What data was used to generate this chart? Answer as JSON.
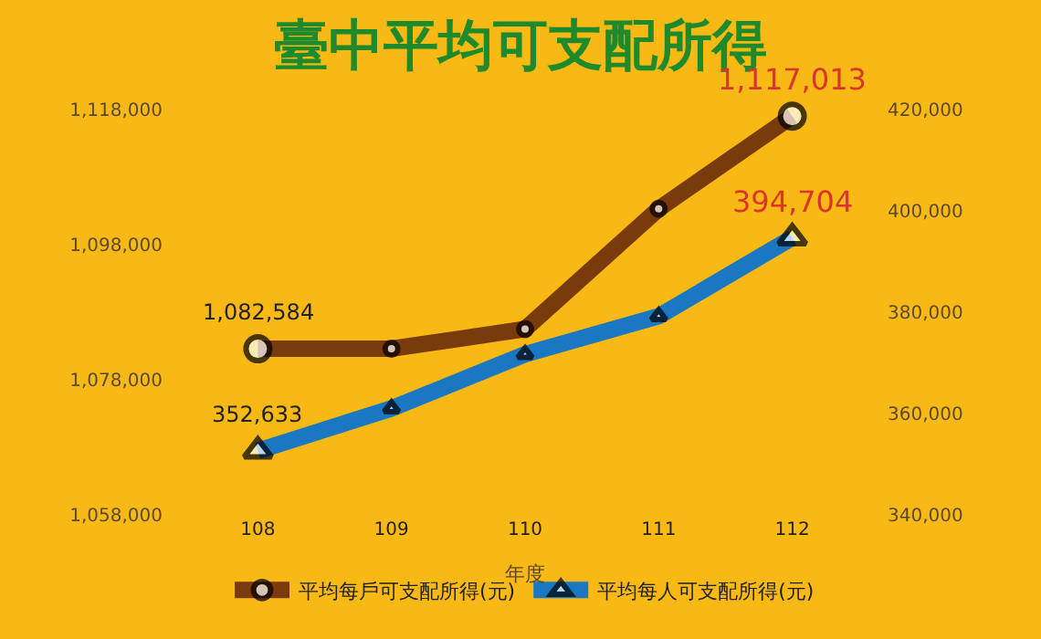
{
  "chart_data": {
    "type": "line",
    "title": "臺中平均可支配所得",
    "xlabel": "年度",
    "categories": [
      "108",
      "109",
      "110",
      "111",
      "112"
    ],
    "series": [
      {
        "name": "平均每戶可支配所得(元)",
        "color": "#7a3b0c",
        "marker": "circle",
        "values": [
          1082584,
          1082600,
          1085500,
          1103300,
          1117013
        ],
        "value_labels": [
          "1,082,584",
          null,
          null,
          null,
          "1,117,013"
        ]
      },
      {
        "name": "平均每人可支配所得(元)",
        "color": "#1a78c2",
        "marker": "triangle",
        "axis": "y2",
        "values": [
          352633,
          361000,
          371700,
          379200,
          394704
        ],
        "value_labels": [
          "352,633",
          null,
          null,
          null,
          "394,704"
        ]
      }
    ],
    "ylim": [
      1058000,
      1118000
    ],
    "yticks": [
      {
        "value": 1058000,
        "label": "1,058,000"
      },
      {
        "value": 1078000,
        "label": "1,078,000"
      },
      {
        "value": 1098000,
        "label": "1,098,000"
      },
      {
        "value": 1118000,
        "label": "1,118,000"
      }
    ],
    "y2lim": [
      340000,
      420000
    ],
    "y2ticks": [
      {
        "value": 340000,
        "label": "340,000"
      },
      {
        "value": 360000,
        "label": "360,000"
      },
      {
        "value": 380000,
        "label": "380,000"
      },
      {
        "value": 400000,
        "label": "400,000"
      },
      {
        "value": 420000,
        "label": "420,000"
      }
    ],
    "legend": "bottom",
    "grid": false
  }
}
